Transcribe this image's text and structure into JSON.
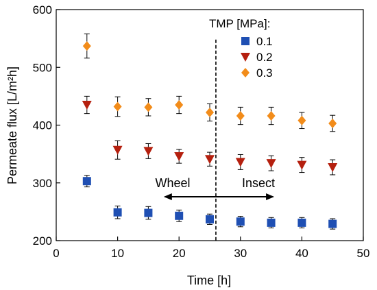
{
  "chart_data": {
    "type": "scatter",
    "xlabel": "Time [h]",
    "ylabel": "Permeate flux [L/m²h]",
    "xlim": [
      0,
      50
    ],
    "ylim": [
      200,
      600
    ],
    "xticks": [
      0,
      10,
      20,
      30,
      40,
      50
    ],
    "yticks": [
      200,
      300,
      400,
      500,
      600
    ],
    "grid": false,
    "legend": {
      "title": "TMP [MPa]:",
      "placement": "top-right"
    },
    "series": [
      {
        "name": "0.1",
        "marker": "square",
        "color": "#1f4fb3",
        "x": [
          5,
          10,
          15,
          20,
          25,
          30,
          35,
          40,
          45
        ],
        "y": [
          303,
          249,
          248,
          243,
          237,
          233,
          231,
          231,
          229
        ],
        "err": [
          10,
          11,
          11,
          10,
          9,
          9,
          9,
          9,
          9
        ]
      },
      {
        "name": "0.2",
        "marker": "triangle-down",
        "color": "#b5200f",
        "x": [
          5,
          10,
          15,
          20,
          25,
          30,
          35,
          40,
          45
        ],
        "y": [
          435,
          357,
          355,
          346,
          341,
          336,
          334,
          331,
          327
        ],
        "err": [
          15,
          16,
          13,
          12,
          12,
          13,
          13,
          13,
          13
        ]
      },
      {
        "name": "0.3",
        "marker": "diamond",
        "color": "#f28c1a",
        "x": [
          5,
          10,
          15,
          20,
          25,
          30,
          35,
          40,
          45
        ],
        "y": [
          537,
          432,
          431,
          435,
          422,
          416,
          416,
          408,
          403
        ],
        "err": [
          21,
          17,
          15,
          15,
          15,
          15,
          15,
          14,
          14
        ]
      }
    ],
    "vline": {
      "x": 26,
      "style": "dashed"
    },
    "arrow": {
      "x_start": 17.5,
      "x_end": 35.5,
      "y": 276,
      "labels": [
        "Wheel",
        "Insect"
      ]
    }
  }
}
